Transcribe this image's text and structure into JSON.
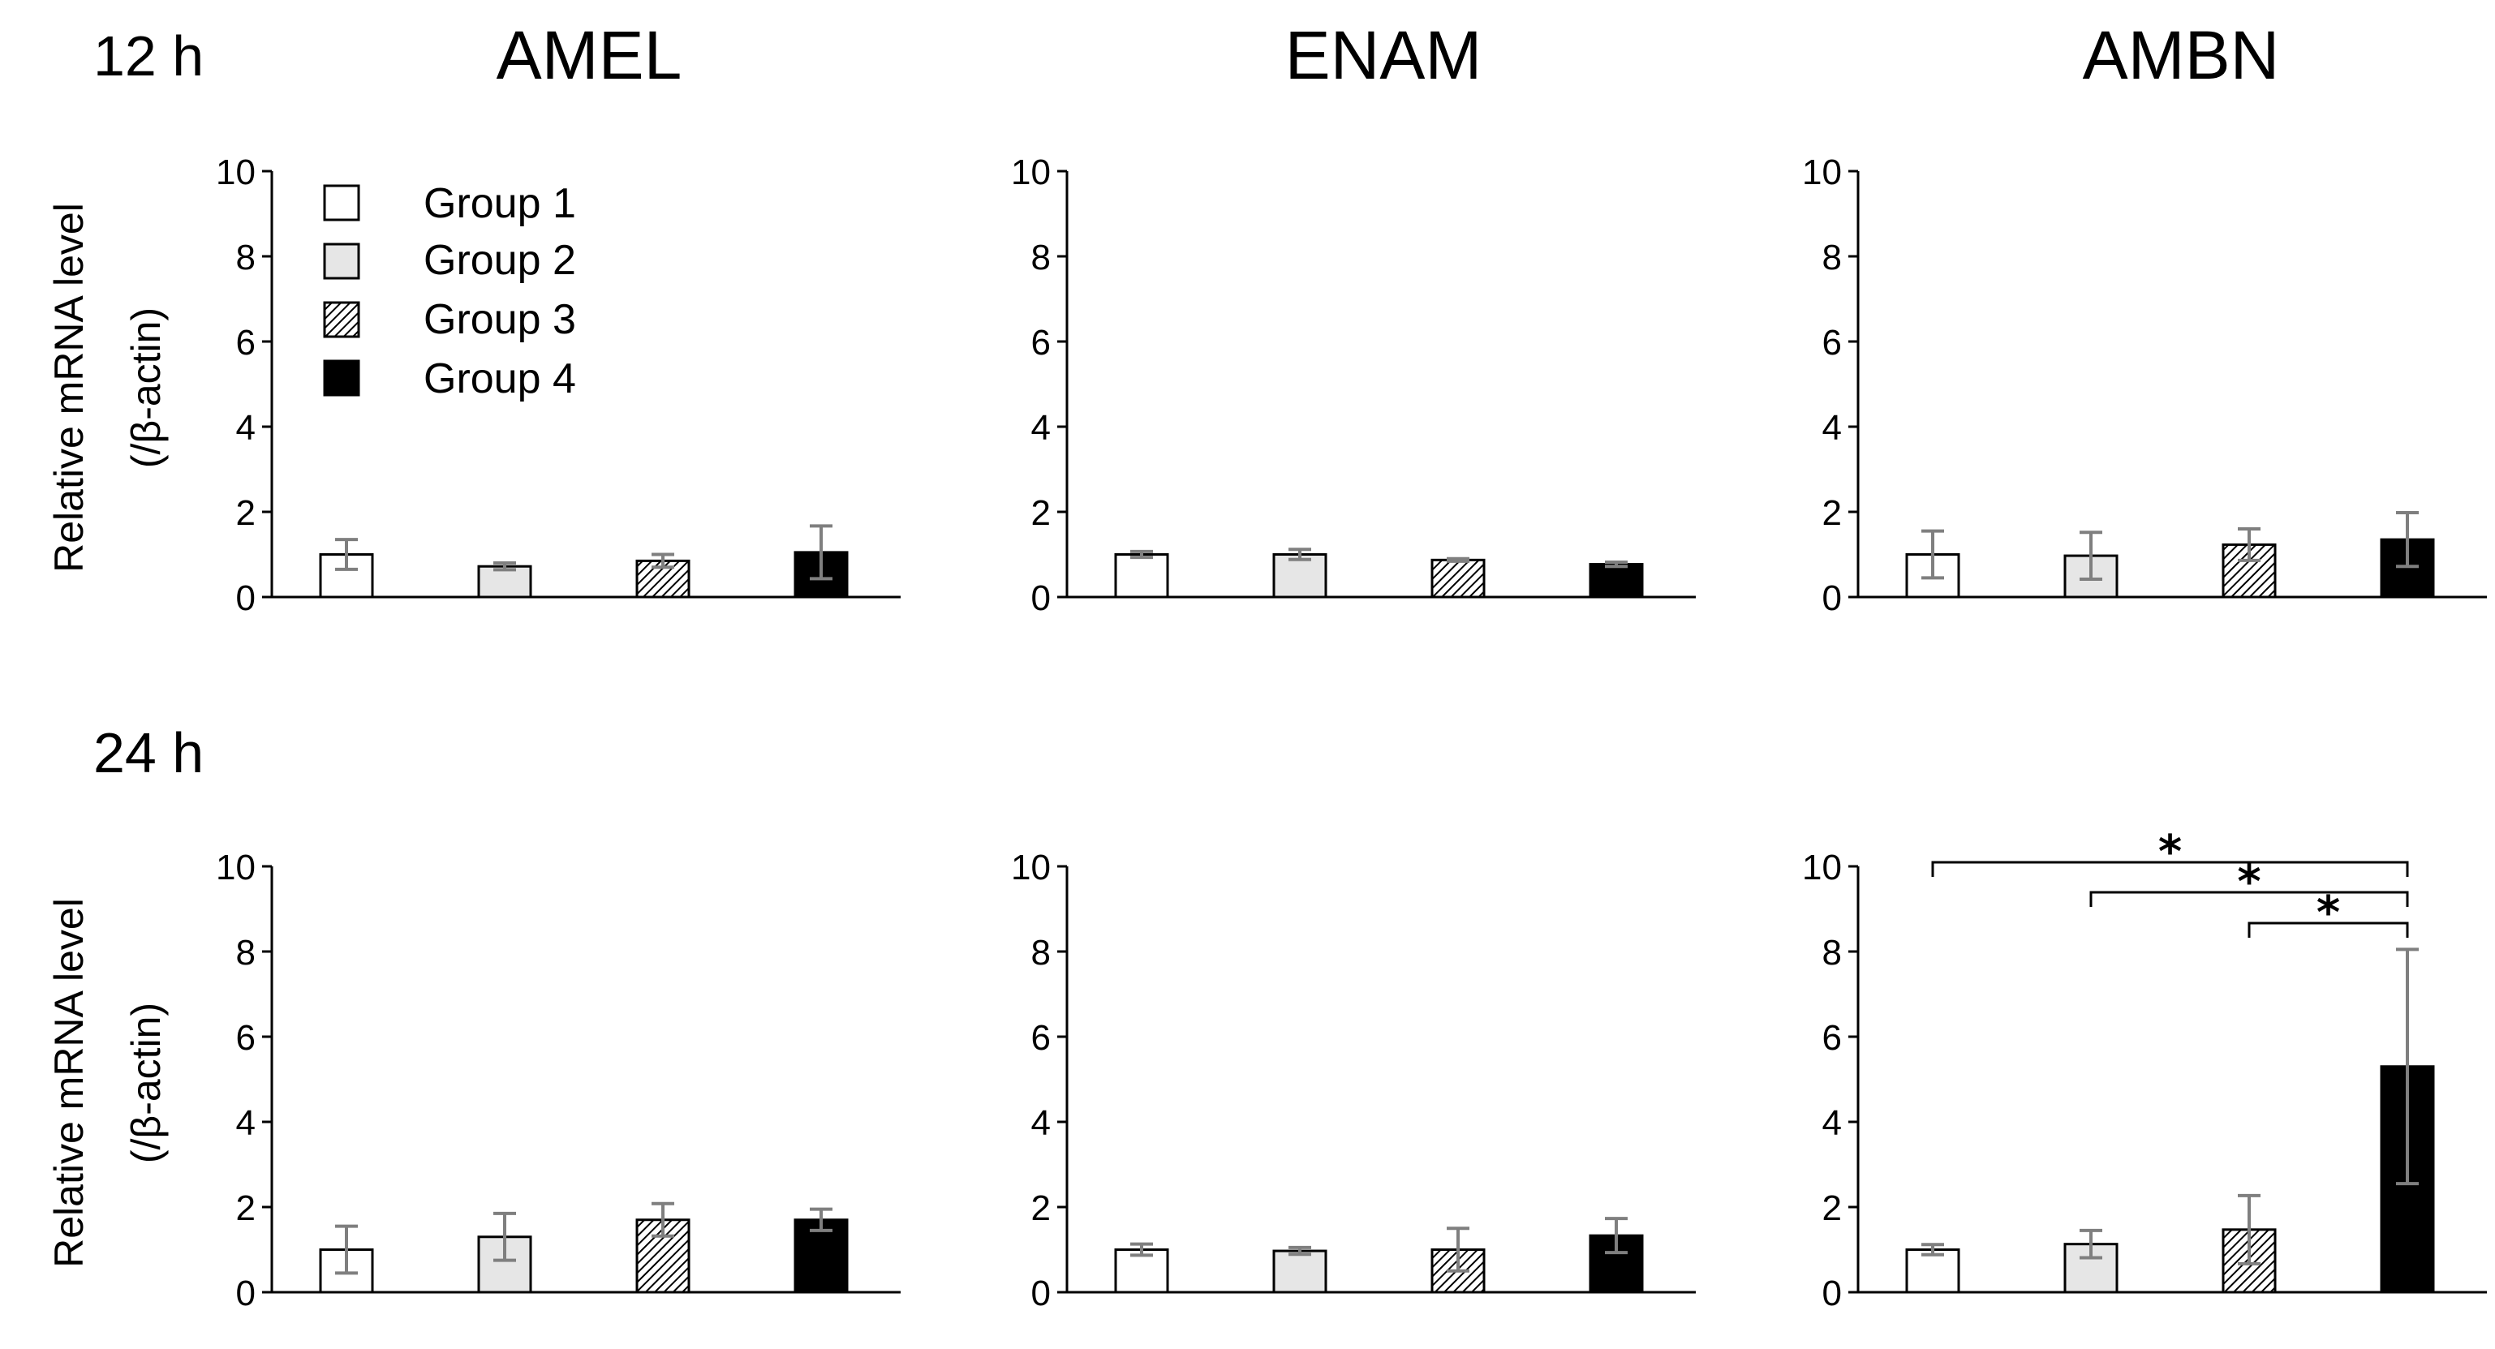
{
  "figure": {
    "time_labels": [
      "12 h",
      "24 h"
    ],
    "gene_titles": [
      "AMEL",
      "ENAM",
      "AMBN"
    ],
    "ylabel_line1": "Relative mRNA level",
    "ylabel_line2": "(/β-actin)",
    "legend": [
      {
        "label": "Group 1",
        "fill": "white"
      },
      {
        "label": "Group 2",
        "fill": "lightgray"
      },
      {
        "label": "Group 3",
        "fill": "hatch"
      },
      {
        "label": "Group 4",
        "fill": "black"
      }
    ],
    "colors": {
      "group1": "#ffffff",
      "group2": "#e6e6e6",
      "group3": "hatch",
      "group4": "#000000",
      "error_bar": "#7f7f7f"
    }
  },
  "chart_data": [
    {
      "type": "bar",
      "time": "12 h",
      "gene": "AMEL",
      "categories": [
        "Group 1",
        "Group 2",
        "Group 3",
        "Group 4"
      ],
      "values": [
        1.0,
        0.72,
        0.85,
        1.05
      ],
      "errors": [
        0.35,
        0.08,
        0.15,
        0.62
      ],
      "ylim": [
        0,
        10
      ],
      "yticks": [
        0,
        2,
        4,
        6,
        8,
        10
      ],
      "ylabel": "Relative mRNA level (/β-actin)",
      "significance": []
    },
    {
      "type": "bar",
      "time": "12 h",
      "gene": "ENAM",
      "categories": [
        "Group 1",
        "Group 2",
        "Group 3",
        "Group 4"
      ],
      "values": [
        1.0,
        1.0,
        0.87,
        0.77
      ],
      "errors": [
        0.07,
        0.12,
        0.03,
        0.05
      ],
      "ylim": [
        0,
        10
      ],
      "yticks": [
        0,
        2,
        4,
        6,
        8,
        10
      ],
      "ylabel": "",
      "significance": []
    },
    {
      "type": "bar",
      "time": "12 h",
      "gene": "AMBN",
      "categories": [
        "Group 1",
        "Group 2",
        "Group 3",
        "Group 4"
      ],
      "values": [
        1.0,
        0.97,
        1.23,
        1.35
      ],
      "errors": [
        0.55,
        0.55,
        0.37,
        0.63
      ],
      "ylim": [
        0,
        10
      ],
      "yticks": [
        0,
        2,
        4,
        6,
        8,
        10
      ],
      "ylabel": "",
      "significance": []
    },
    {
      "type": "bar",
      "time": "24 h",
      "gene": "AMEL",
      "categories": [
        "Group 1",
        "Group 2",
        "Group 3",
        "Group 4"
      ],
      "values": [
        1.0,
        1.3,
        1.7,
        1.7
      ],
      "errors": [
        0.55,
        0.55,
        0.38,
        0.25
      ],
      "ylim": [
        0,
        10
      ],
      "yticks": [
        0,
        2,
        4,
        6,
        8,
        10
      ],
      "ylabel": "Relative mRNA level (/β-actin)",
      "significance": []
    },
    {
      "type": "bar",
      "time": "24 h",
      "gene": "ENAM",
      "categories": [
        "Group 1",
        "Group 2",
        "Group 3",
        "Group 4"
      ],
      "values": [
        1.0,
        0.97,
        1.0,
        1.33
      ],
      "errors": [
        0.13,
        0.08,
        0.5,
        0.4
      ],
      "ylim": [
        0,
        10
      ],
      "yticks": [
        0,
        2,
        4,
        6,
        8,
        10
      ],
      "ylabel": "",
      "significance": []
    },
    {
      "type": "bar",
      "time": "24 h",
      "gene": "AMBN",
      "categories": [
        "Group 1",
        "Group 2",
        "Group 3",
        "Group 4"
      ],
      "values": [
        1.0,
        1.13,
        1.47,
        5.3
      ],
      "errors": [
        0.12,
        0.32,
        0.8,
        2.75
      ],
      "ylim": [
        0,
        10
      ],
      "yticks": [
        0,
        2,
        4,
        6,
        8,
        10
      ],
      "ylabel": "",
      "significance": [
        {
          "from": "Group 1",
          "to": "Group 4",
          "label": "*"
        },
        {
          "from": "Group 2",
          "to": "Group 4",
          "label": "*"
        },
        {
          "from": "Group 3",
          "to": "Group 4",
          "label": "*"
        }
      ]
    }
  ]
}
